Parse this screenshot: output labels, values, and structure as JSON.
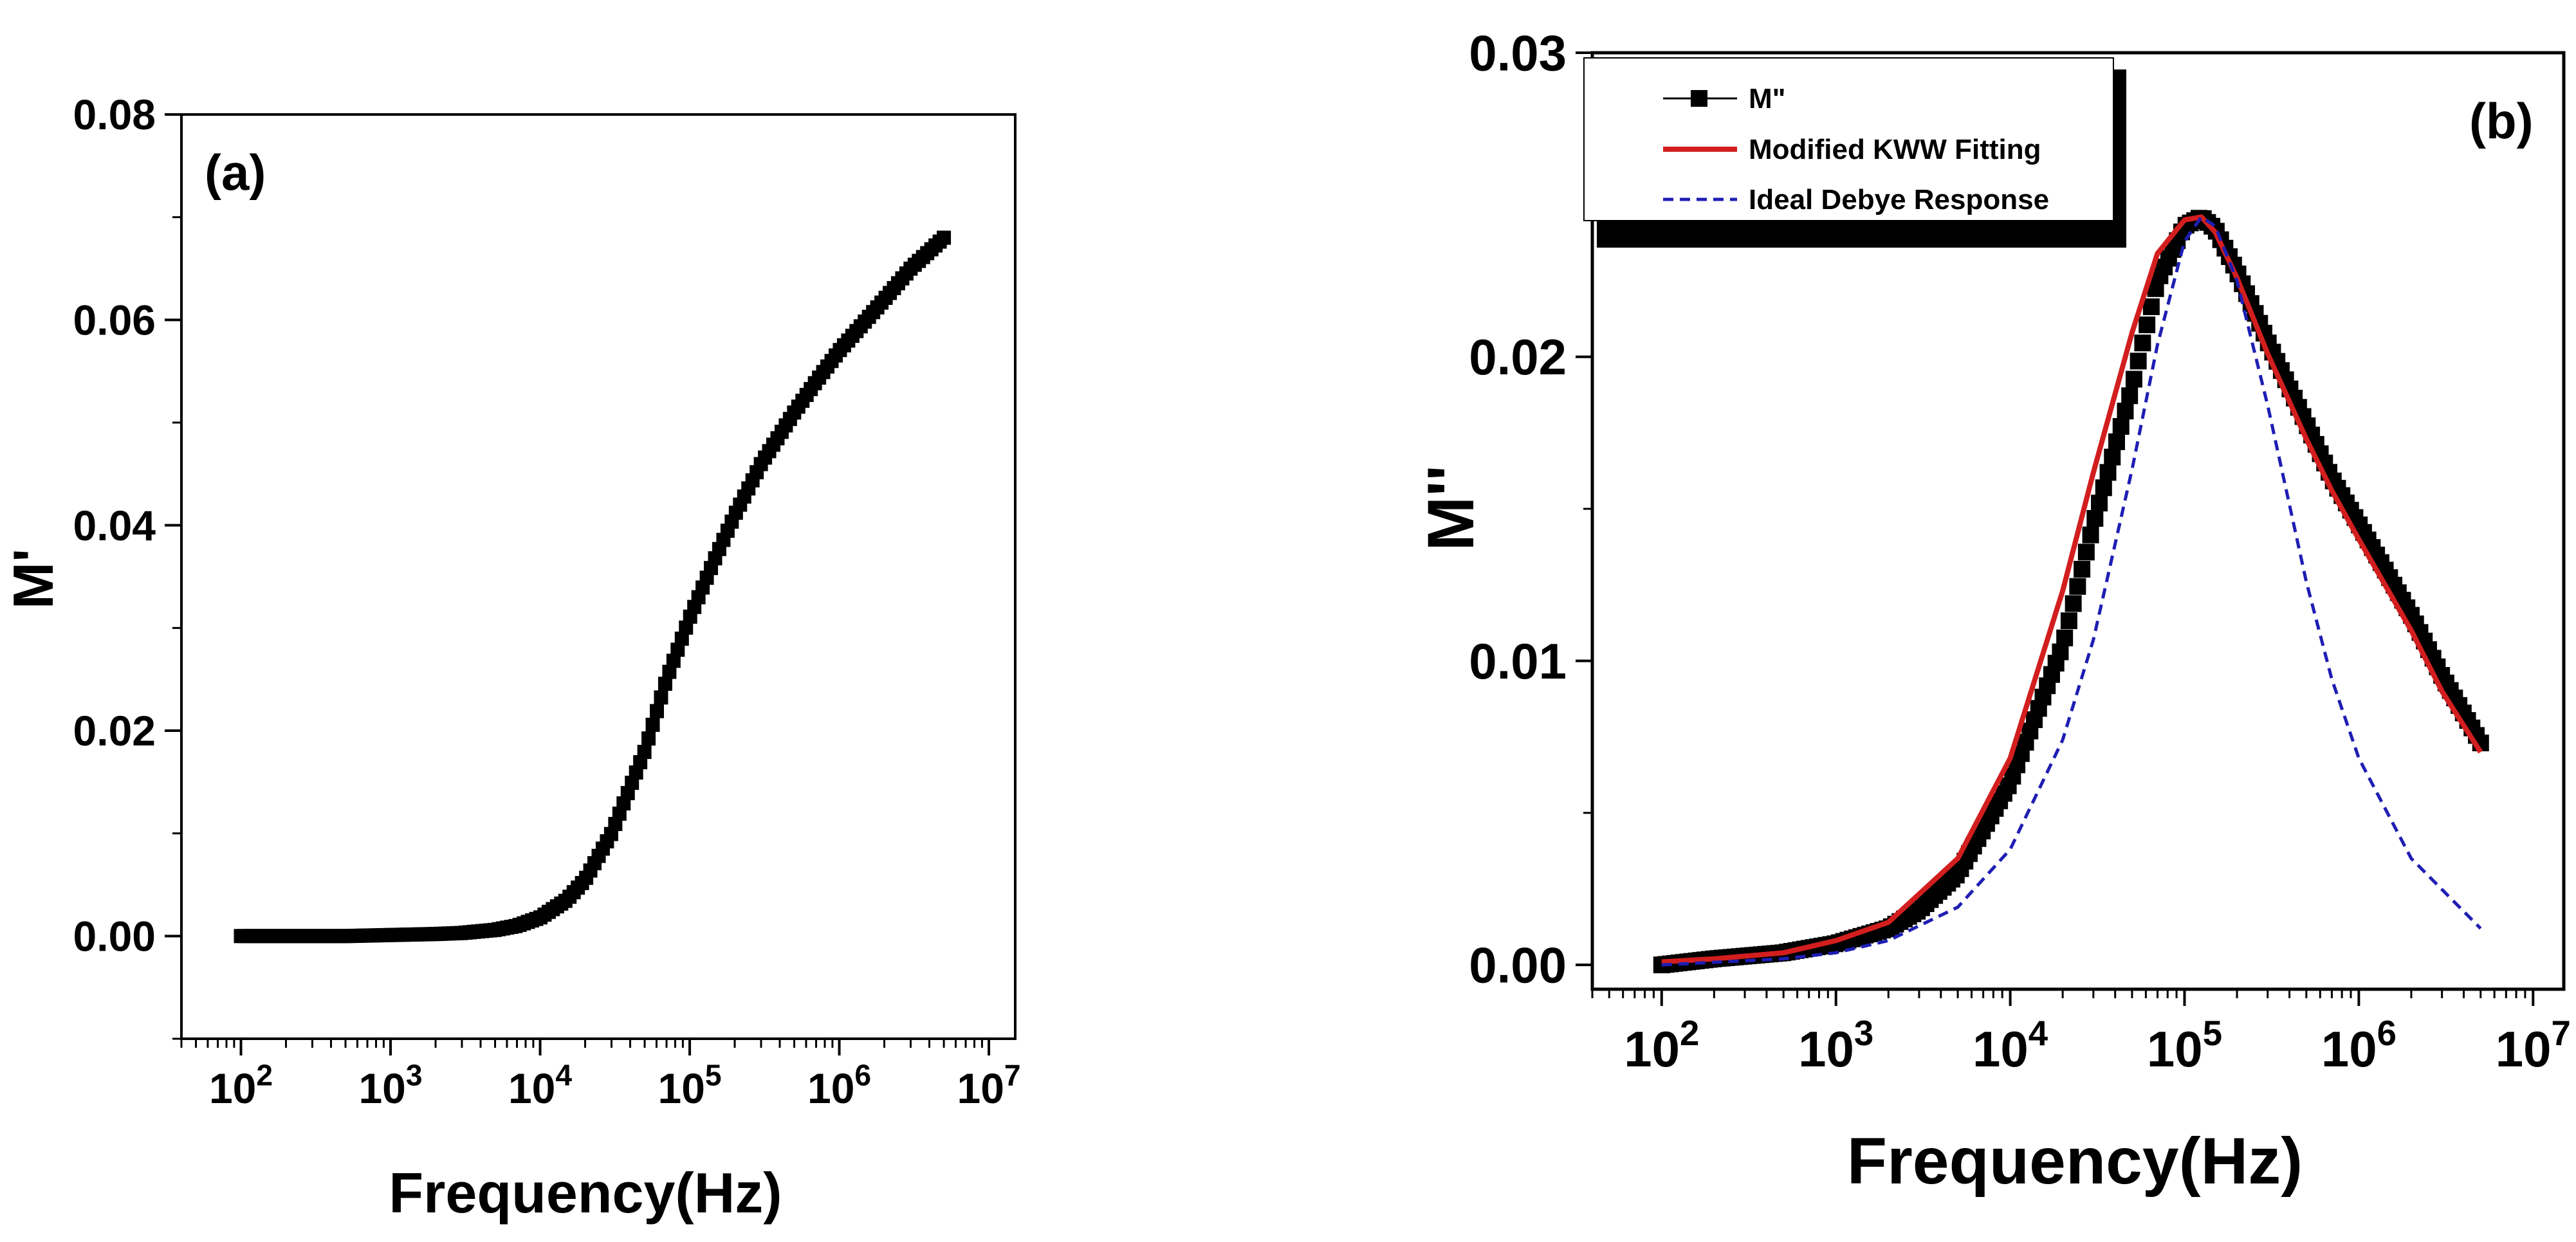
{
  "chart_data": [
    {
      "type": "scatter",
      "panel_label": "(a)",
      "xlabel": "Frequency(Hz)",
      "ylabel": "M'",
      "x_scale": "log",
      "xlim": [
        40,
        15000000
      ],
      "ylim": [
        -0.01,
        0.08
      ],
      "x_ticks": [
        {
          "value": 100,
          "base": "10",
          "exp": "2"
        },
        {
          "value": 1000,
          "base": "10",
          "exp": "3"
        },
        {
          "value": 10000,
          "base": "10",
          "exp": "4"
        },
        {
          "value": 100000,
          "base": "10",
          "exp": "5"
        },
        {
          "value": 1000000,
          "base": "10",
          "exp": "6"
        },
        {
          "value": 10000000,
          "base": "10",
          "exp": "7"
        }
      ],
      "y_ticks": [
        {
          "value": 0.0,
          "label": "0.00"
        },
        {
          "value": 0.02,
          "label": "0.02"
        },
        {
          "value": 0.04,
          "label": "0.04"
        },
        {
          "value": 0.06,
          "label": "0.06"
        },
        {
          "value": 0.08,
          "label": "0.08"
        }
      ],
      "series": [
        {
          "name": "M'",
          "color": "#000000",
          "marker": "square",
          "points": [
            [
              100,
              0.0
            ],
            [
              200,
              0.0
            ],
            [
              500,
              0.0
            ],
            [
              1000,
              0.0001
            ],
            [
              2000,
              0.0002
            ],
            [
              3000,
              0.0003
            ],
            [
              5000,
              0.0006
            ],
            [
              7000,
              0.001
            ],
            [
              10000,
              0.0018
            ],
            [
              15000,
              0.0035
            ],
            [
              20000,
              0.0055
            ],
            [
              30000,
              0.01
            ],
            [
              50000,
              0.018
            ],
            [
              70000,
              0.025
            ],
            [
              100000,
              0.031
            ],
            [
              150000,
              0.037
            ],
            [
              200000,
              0.041
            ],
            [
              300000,
              0.046
            ],
            [
              500000,
              0.051
            ],
            [
              700000,
              0.054
            ],
            [
              1000000,
              0.057
            ],
            [
              2000000,
              0.062
            ],
            [
              3000000,
              0.065
            ],
            [
              5000000,
              0.068
            ]
          ]
        }
      ]
    },
    {
      "type": "line",
      "panel_label": "(b)",
      "xlabel": "Frequency(Hz)",
      "ylabel": "M''",
      "x_scale": "log",
      "xlim": [
        40,
        15000000
      ],
      "ylim": [
        -0.0008,
        0.03
      ],
      "x_ticks": [
        {
          "value": 100,
          "base": "10",
          "exp": "2"
        },
        {
          "value": 1000,
          "base": "10",
          "exp": "3"
        },
        {
          "value": 10000,
          "base": "10",
          "exp": "4"
        },
        {
          "value": 100000,
          "base": "10",
          "exp": "5"
        },
        {
          "value": 1000000,
          "base": "10",
          "exp": "6"
        },
        {
          "value": 10000000,
          "base": "10",
          "exp": "7"
        }
      ],
      "y_ticks": [
        {
          "value": 0.0,
          "label": "0.00"
        },
        {
          "value": 0.01,
          "label": "0.01"
        },
        {
          "value": 0.02,
          "label": "0.02"
        },
        {
          "value": 0.03,
          "label": "0.03"
        }
      ],
      "legend_position": "top-left",
      "series": [
        {
          "name": "M\"",
          "color": "#000000",
          "marker": "square",
          "line_style": "solid",
          "points": [
            [
              100,
              0.0
            ],
            [
              200,
              0.0002
            ],
            [
              500,
              0.0004
            ],
            [
              1000,
              0.0007
            ],
            [
              2000,
              0.0012
            ],
            [
              3000,
              0.0018
            ],
            [
              5000,
              0.003
            ],
            [
              10000,
              0.006
            ],
            [
              20000,
              0.0105
            ],
            [
              30000,
              0.0145
            ],
            [
              50000,
              0.019
            ],
            [
              70000,
              0.0225
            ],
            [
              100000,
              0.0243
            ],
            [
              125000,
              0.0246
            ],
            [
              150000,
              0.0242
            ],
            [
              200000,
              0.0228
            ],
            [
              300000,
              0.0205
            ],
            [
              500000,
              0.0178
            ],
            [
              700000,
              0.016
            ],
            [
              1000000,
              0.0145
            ],
            [
              2000000,
              0.0115
            ],
            [
              3000000,
              0.0095
            ],
            [
              5000000,
              0.0073
            ]
          ]
        },
        {
          "name": "Modified KWW Fitting",
          "color": "#d21e1e",
          "line_style": "solid",
          "points": [
            [
              100,
              0.0001
            ],
            [
              200,
              0.0002
            ],
            [
              500,
              0.0004
            ],
            [
              1000,
              0.0008
            ],
            [
              2000,
              0.0014
            ],
            [
              5000,
              0.0035
            ],
            [
              10000,
              0.0068
            ],
            [
              20000,
              0.0123
            ],
            [
              30000,
              0.0162
            ],
            [
              50000,
              0.0208
            ],
            [
              70000,
              0.0234
            ],
            [
              100000,
              0.0245
            ],
            [
              125000,
              0.0246
            ],
            [
              150000,
              0.0241
            ],
            [
              200000,
              0.0226
            ],
            [
              300000,
              0.0201
            ],
            [
              500000,
              0.0173
            ],
            [
              700000,
              0.0156
            ],
            [
              1000000,
              0.014
            ],
            [
              2000000,
              0.011
            ],
            [
              3000000,
              0.009
            ],
            [
              5000000,
              0.007
            ]
          ]
        },
        {
          "name": "Ideal Debye Response",
          "color": "#1e1eb4",
          "line_style": "dashed",
          "points": [
            [
              100,
              0.0
            ],
            [
              500,
              0.0002
            ],
            [
              1000,
              0.0004
            ],
            [
              2000,
              0.0008
            ],
            [
              5000,
              0.0019
            ],
            [
              10000,
              0.0038
            ],
            [
              20000,
              0.0074
            ],
            [
              30000,
              0.0107
            ],
            [
              50000,
              0.0163
            ],
            [
              70000,
              0.0204
            ],
            [
              100000,
              0.0238
            ],
            [
              125000,
              0.0246
            ],
            [
              150000,
              0.0243
            ],
            [
              200000,
              0.0225
            ],
            [
              300000,
              0.0184
            ],
            [
              500000,
              0.0126
            ],
            [
              700000,
              0.0094
            ],
            [
              1000000,
              0.0068
            ],
            [
              2000000,
              0.0035
            ],
            [
              5000000,
              0.0012
            ]
          ]
        }
      ]
    }
  ]
}
